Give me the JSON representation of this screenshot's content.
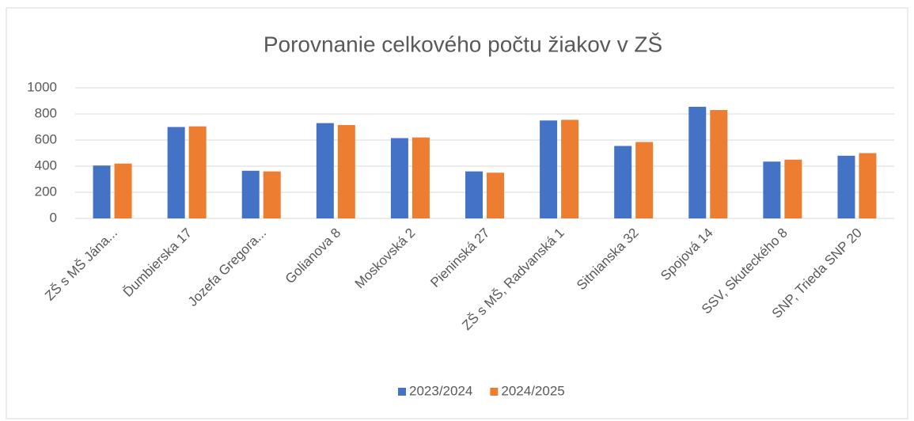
{
  "chart_data": {
    "type": "bar",
    "title": "Porovnanie celkového počtu žiakov v ZŠ",
    "categories": [
      "ZŠ s MŠ Jána...",
      "Ďumbierska 17",
      "Jozefa Gregora...",
      "Golianova 8",
      "Moskovská 2",
      "Pieninská 27",
      "ZŠ s MŠ, Radvanská 1",
      "Sitnianska 32",
      "Spojová 14",
      "SSV, Skuteckého 8",
      "SNP, Trieda SNP 20"
    ],
    "series": [
      {
        "name": "2023/2024",
        "color": "#4472c4",
        "values": [
          405,
          700,
          365,
          730,
          615,
          360,
          750,
          555,
          855,
          435,
          480
        ]
      },
      {
        "name": "2024/2025",
        "color": "#ed7d31",
        "values": [
          420,
          705,
          360,
          715,
          620,
          350,
          755,
          585,
          830,
          450,
          500
        ]
      }
    ],
    "ylim": [
      0,
      1000
    ],
    "yticks": [
      0,
      200,
      400,
      600,
      800,
      1000
    ],
    "grid": true,
    "legend": "bottom"
  }
}
